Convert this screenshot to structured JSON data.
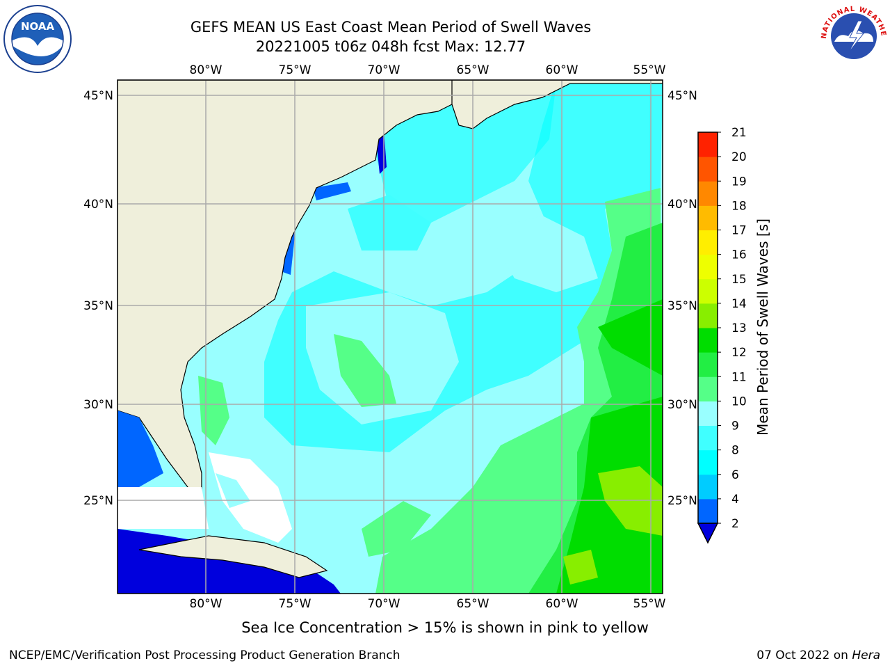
{
  "title": {
    "line1": "GEFS MEAN US East Coast Mean Period of Swell Waves",
    "line2": "20221005 t06z 048h fcst   Max: 12.77"
  },
  "logos": {
    "noaa_text": "NOAA",
    "nws_text": "NATIONAL WEATHER SERVICE"
  },
  "map": {
    "lon_labels": [
      "80°W",
      "75°W",
      "70°W",
      "65°W",
      "60°W",
      "55°W"
    ],
    "lat_labels": [
      "45°N",
      "40°N",
      "35°N",
      "30°N",
      "25°N"
    ]
  },
  "colorbar": {
    "title": "Mean Period of Swell Waves [s]",
    "ticks": [
      "2",
      "4",
      "6",
      "8",
      "9",
      "10",
      "11",
      "12",
      "13",
      "14",
      "15",
      "16",
      "17",
      "18",
      "19",
      "20",
      "21"
    ],
    "colors": [
      "#0066ff",
      "#00ccff",
      "#00ffff",
      "#40ffff",
      "#99ffff",
      "#55ff88",
      "#22ee44",
      "#00dd00",
      "#88ee00",
      "#ccff00",
      "#eeff00",
      "#ffee00",
      "#ffbb00",
      "#ff8800",
      "#ff5500",
      "#ff2200",
      "#ff0000"
    ],
    "under_color": "#0000dd"
  },
  "bottom_note": "Sea Ice Concentration > 15% is shown in pink to yellow",
  "footer": {
    "left": "NCEP/EMC/Verification Post Processing Product Generation Branch",
    "right_date": "07 Oct 2022 on ",
    "right_machine": "Hera"
  }
}
